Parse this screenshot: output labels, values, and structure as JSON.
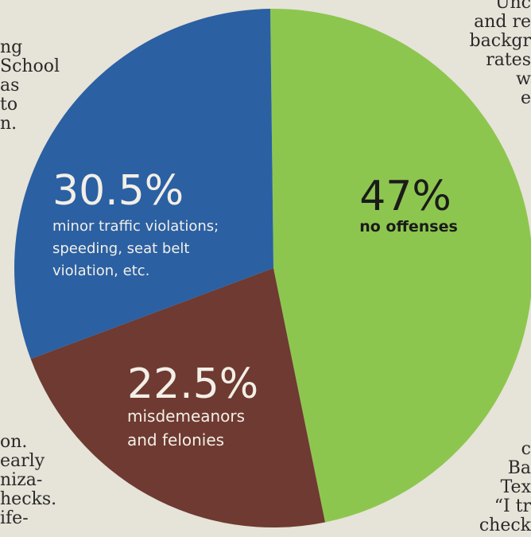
{
  "chart_data": {
    "type": "pie",
    "title": "",
    "slices": [
      {
        "value": 47,
        "value_label": "47%",
        "caption": [
          "no offenses"
        ],
        "color": "#8dc64f"
      },
      {
        "value": 22.5,
        "value_label": "22.5%",
        "caption": [
          "misdemeanors",
          "and felonies"
        ],
        "color": "#6e3a31"
      },
      {
        "value": 30.5,
        "value_label": "30.5%",
        "caption": [
          "minor traffic violations;",
          "speeding, seat belt",
          "violation, etc."
        ],
        "color": "#2b60a3"
      }
    ]
  },
  "newspaper": {
    "left_top": [
      "ng",
      "School",
      "as",
      "to",
      "n."
    ],
    "left_bottom": [
      "on.",
      "early",
      "niza-",
      "hecks.",
      "ife-"
    ],
    "right_top": [
      "Unc",
      "and re",
      "backgr",
      "rates",
      "w",
      "e"
    ],
    "right_bottom": [
      "c",
      "Ba",
      "Tex",
      "“I tr",
      "check"
    ]
  }
}
